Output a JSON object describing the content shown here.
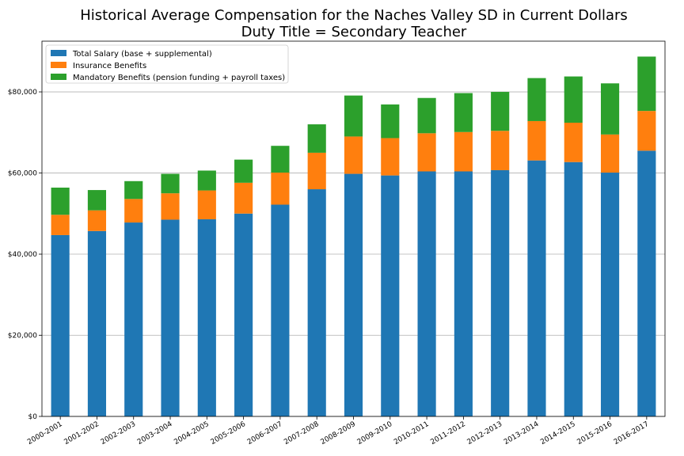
{
  "chart_data": {
    "type": "bar",
    "stacked": true,
    "title": "Historical Average Compensation for the Naches Valley SD in Current Dollars",
    "subtitle": "Duty Title = Secondary Teacher",
    "xlabel": "",
    "ylabel": "",
    "ylim": [
      0,
      92500
    ],
    "yticks": [
      0,
      20000,
      40000,
      60000,
      80000
    ],
    "ytick_labels": [
      "$0",
      "$20,000",
      "$40,000",
      "$60,000",
      "$80,000"
    ],
    "grid": "horizontal",
    "legend_position": "top-left",
    "categories": [
      "2000-2001",
      "2001-2002",
      "2002-2003",
      "2003-2004",
      "2004-2005",
      "2005-2006",
      "2006-2007",
      "2007-2008",
      "2008-2009",
      "2009-2010",
      "2010-2011",
      "2011-2012",
      "2012-2013",
      "2013-2014",
      "2014-2015",
      "2015-2016",
      "2016-2017"
    ],
    "series": [
      {
        "name": "Total Salary (base + supplemental)",
        "color": "#1f77b4",
        "values": [
          44700,
          45700,
          47800,
          48500,
          48600,
          50000,
          52200,
          56000,
          59800,
          59400,
          60400,
          60400,
          60700,
          63100,
          62700,
          60100,
          65500
        ]
      },
      {
        "name": "Insurance Benefits",
        "color": "#ff7f0e",
        "values": [
          5000,
          5100,
          5800,
          6500,
          7100,
          7600,
          7900,
          9000,
          9200,
          9200,
          9400,
          9700,
          9700,
          9700,
          9700,
          9400,
          9800
        ]
      },
      {
        "name": "Mandatory Benefits (pension funding + payroll taxes)",
        "color": "#2ca02c",
        "values": [
          6700,
          5000,
          4400,
          4800,
          4900,
          5700,
          6600,
          7000,
          10100,
          8300,
          8700,
          9600,
          9600,
          10600,
          11400,
          12600,
          13400
        ]
      }
    ]
  }
}
